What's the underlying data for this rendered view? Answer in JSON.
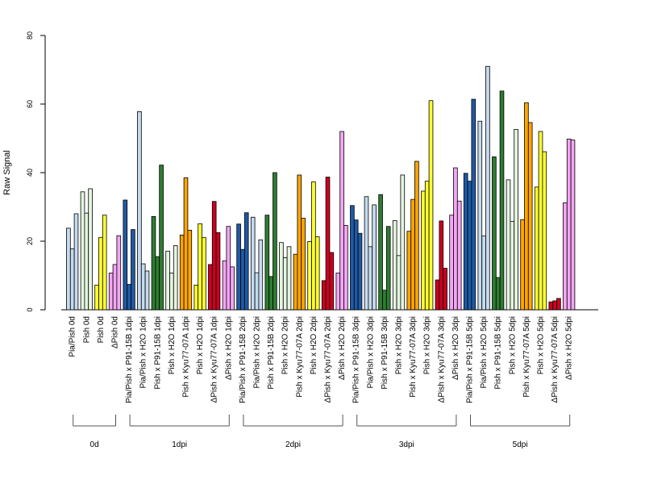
{
  "chart_data": {
    "type": "bar",
    "ylabel": "Raw Signal",
    "ylim": [
      0,
      80
    ],
    "yticks": [
      0,
      20,
      40,
      60,
      80
    ],
    "bars_per_category": 3,
    "categories": [
      {
        "label": "Pia/Pish 0d",
        "color": "#c6dbef",
        "values": [
          23.8,
          17.8,
          28.0
        ]
      },
      {
        "label": "Pish 0d",
        "color": "#e5f5e0",
        "values": [
          34.4,
          28.2,
          35.3
        ]
      },
      {
        "label": "Pish 0d",
        "color": "#ffff33",
        "values": [
          7.2,
          21.1,
          27.6
        ]
      },
      {
        "label": "ΔPish 0d",
        "color": "#f4a6f4",
        "values": [
          10.7,
          13.2,
          21.6
        ]
      },
      {
        "label": "Pia/Pish x P91-15B 1dpi",
        "color": "#1f5aa6",
        "values": [
          32.0,
          7.4,
          23.4
        ]
      },
      {
        "label": "Pia/Pish x H2O 1dpi",
        "color": "#c6dbef",
        "values": [
          57.8,
          13.4,
          11.3
        ]
      },
      {
        "label": "Pish x P91-15B 1dpi",
        "color": "#2e7d32",
        "values": [
          27.2,
          15.5,
          42.2
        ]
      },
      {
        "label": "Pish x H2O 1dpi",
        "color": "#e5f5e0",
        "values": [
          17.1,
          10.7,
          18.7
        ]
      },
      {
        "label": "Pish x Kyu77-07A 1dpi",
        "color": "#ffa500",
        "values": [
          21.8,
          38.5,
          23.2
        ]
      },
      {
        "label": "Pish x H2O 1dpi",
        "color": "#ffff33",
        "values": [
          7.2,
          25.1,
          21.1
        ]
      },
      {
        "label": "ΔPish x Kyu77-07A 1dpi",
        "color": "#cc0022",
        "values": [
          13.2,
          31.6,
          22.5
        ]
      },
      {
        "label": "ΔPish x H2O 1dpi",
        "color": "#f4a6f4",
        "values": [
          14.3,
          24.3,
          12.5
        ]
      },
      {
        "label": "Pia/Pish x P91-15B 2dpi",
        "color": "#1f5aa6",
        "values": [
          25.0,
          17.6,
          28.3
        ]
      },
      {
        "label": "Pia/Pish x H2O 2dpi",
        "color": "#c6dbef",
        "values": [
          27.0,
          10.8,
          20.4
        ]
      },
      {
        "label": "Pish x P91-15B 2dpi",
        "color": "#2e7d32",
        "values": [
          27.6,
          9.7,
          40.0
        ]
      },
      {
        "label": "Pish x H2O 2dpi",
        "color": "#e5f5e0",
        "values": [
          19.6,
          15.2,
          18.4
        ]
      },
      {
        "label": "Pish x Kyu77-07A 2dpi",
        "color": "#ffa500",
        "values": [
          16.2,
          39.3,
          26.7
        ]
      },
      {
        "label": "Pish x H2O 2dpi",
        "color": "#ffff33",
        "values": [
          19.9,
          37.3,
          21.3
        ]
      },
      {
        "label": "ΔPish x Kyu77-07A 2dpi",
        "color": "#cc0022",
        "values": [
          8.5,
          38.7,
          16.7
        ]
      },
      {
        "label": "ΔPish x H2O 2dpi",
        "color": "#f4a6f4",
        "values": [
          10.7,
          52.0,
          24.6
        ]
      },
      {
        "label": "Pia/Pish x P91-15B 3dpi",
        "color": "#1f5aa6",
        "values": [
          30.4,
          26.2,
          22.3
        ]
      },
      {
        "label": "Pia/Pish x H2O 3dpi",
        "color": "#c6dbef",
        "values": [
          33.0,
          18.4,
          30.6
        ]
      },
      {
        "label": "Pish x P91-15B 3dpi",
        "color": "#2e7d32",
        "values": [
          33.6,
          5.7,
          24.3
        ]
      },
      {
        "label": "Pish x H2O 3dpi",
        "color": "#e5f5e0",
        "values": [
          26.0,
          15.8,
          39.3
        ]
      },
      {
        "label": "Pish x Kyu77-07A 3dpi",
        "color": "#ffa500",
        "values": [
          22.9,
          32.2,
          43.3
        ]
      },
      {
        "label": "Pish x H2O 3dpi",
        "color": "#ffff33",
        "values": [
          34.6,
          37.5,
          61.0
        ]
      },
      {
        "label": "ΔPish x Kyu77-07A 3dpi",
        "color": "#cc0022",
        "values": [
          8.7,
          25.9,
          12.1
        ]
      },
      {
        "label": "ΔPish x H2O 3dpi",
        "color": "#f4a6f4",
        "values": [
          27.6,
          41.4,
          31.7
        ]
      },
      {
        "label": "Pia/Pish x P91-15B 5dpi",
        "color": "#1f5aa6",
        "values": [
          39.8,
          37.5,
          61.4
        ]
      },
      {
        "label": "Pia/Pish x H2O 5dpi",
        "color": "#c6dbef",
        "values": [
          55.0,
          21.5,
          71.0
        ]
      },
      {
        "label": "Pish x P91-15B 5dpi",
        "color": "#2e7d32",
        "values": [
          44.6,
          9.4,
          63.8
        ]
      },
      {
        "label": "Pish x H2O 5dpi",
        "color": "#e5f5e0",
        "values": [
          37.9,
          25.8,
          52.6
        ]
      },
      {
        "label": "Pish x Kyu77-07A 5dpi",
        "color": "#ffa500",
        "values": [
          26.3,
          60.4,
          54.6
        ]
      },
      {
        "label": "Pish x H2O 5dpi",
        "color": "#ffff33",
        "values": [
          35.8,
          52.0,
          46.1
        ]
      },
      {
        "label": "ΔPish x Kyu77-07A 5dpi",
        "color": "#cc0022",
        "values": [
          2.3,
          2.6,
          3.3
        ]
      },
      {
        "label": "ΔPish x H2O 5dpi",
        "color": "#f4a6f4",
        "values": [
          31.2,
          49.8,
          49.5
        ]
      }
    ],
    "groups": [
      {
        "label": "0d",
        "first": 0,
        "last": 3
      },
      {
        "label": "1dpi",
        "first": 4,
        "last": 11
      },
      {
        "label": "2dpi",
        "first": 12,
        "last": 19
      },
      {
        "label": "3dpi",
        "first": 20,
        "last": 27
      },
      {
        "label": "5dpi",
        "first": 28,
        "last": 35
      }
    ]
  }
}
